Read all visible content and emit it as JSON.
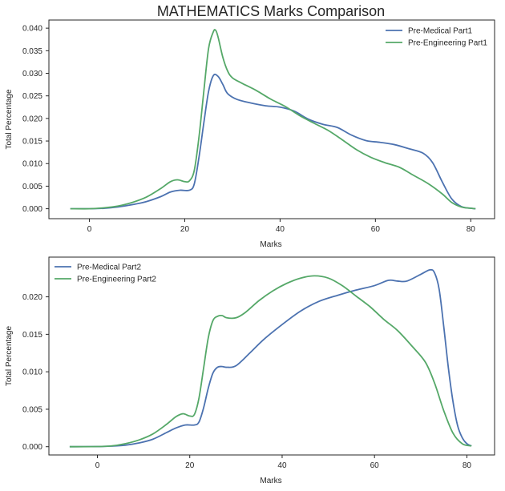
{
  "title": "MATHEMATICS Marks Comparison",
  "colors": {
    "blue": "#4C72B0",
    "green": "#55A868",
    "axis": "#262626"
  },
  "chart_data": [
    {
      "type": "line",
      "xlabel": "Marks",
      "ylabel": "Total Percentage",
      "xlim": [
        -8.5,
        85
      ],
      "ylim": [
        -0.0022,
        0.0418
      ],
      "xticks": [
        0,
        20,
        40,
        60,
        80
      ],
      "yticks": [
        0.0,
        0.005,
        0.01,
        0.015,
        0.02,
        0.025,
        0.03,
        0.035,
        0.04
      ],
      "ytick_labels": [
        "0.000",
        "0.005",
        "0.010",
        "0.015",
        "0.020",
        "0.025",
        "0.030",
        "0.035",
        "0.040"
      ],
      "legend_position": "top-right",
      "grid": false,
      "series": [
        {
          "name": "Pre-Medical Part1",
          "color": "#4C72B0",
          "points": [
            [
              -4,
              0
            ],
            [
              0,
              0
            ],
            [
              3,
              0.0001
            ],
            [
              6,
              0.0004
            ],
            [
              9,
              0.0009
            ],
            [
              12,
              0.0016
            ],
            [
              15,
              0.0027
            ],
            [
              17,
              0.0037
            ],
            [
              19,
              0.0041
            ],
            [
              21,
              0.0041
            ],
            [
              22,
              0.0055
            ],
            [
              23,
              0.0115
            ],
            [
              24,
              0.019
            ],
            [
              25,
              0.026
            ],
            [
              26,
              0.0295
            ],
            [
              27,
              0.0293
            ],
            [
              28,
              0.0275
            ],
            [
              29,
              0.0255
            ],
            [
              31,
              0.0242
            ],
            [
              34,
              0.0234
            ],
            [
              37,
              0.0228
            ],
            [
              40,
              0.0225
            ],
            [
              43,
              0.0216
            ],
            [
              46,
              0.0198
            ],
            [
              49,
              0.0187
            ],
            [
              52,
              0.018
            ],
            [
              55,
              0.0163
            ],
            [
              58,
              0.0151
            ],
            [
              61,
              0.0147
            ],
            [
              64,
              0.0142
            ],
            [
              67,
              0.0133
            ],
            [
              70,
              0.0123
            ],
            [
              72,
              0.0102
            ],
            [
              74,
              0.006
            ],
            [
              76,
              0.0022
            ],
            [
              78,
              0.0005
            ],
            [
              80,
              0.0001
            ],
            [
              81,
              0
            ]
          ]
        },
        {
          "name": "Pre-Engineering Part1",
          "color": "#55A868",
          "points": [
            [
              -4,
              0
            ],
            [
              0,
              0
            ],
            [
              3,
              0.0002
            ],
            [
              6,
              0.0006
            ],
            [
              9,
              0.0014
            ],
            [
              12,
              0.0026
            ],
            [
              15,
              0.0045
            ],
            [
              17,
              0.006
            ],
            [
              18.5,
              0.0064
            ],
            [
              20,
              0.006
            ],
            [
              21,
              0.0062
            ],
            [
              22,
              0.0085
            ],
            [
              23,
              0.016
            ],
            [
              24,
              0.026
            ],
            [
              25,
              0.0355
            ],
            [
              26,
              0.0392
            ],
            [
              26.5,
              0.0395
            ],
            [
              27,
              0.038
            ],
            [
              28,
              0.0335
            ],
            [
              29,
              0.0305
            ],
            [
              30,
              0.029
            ],
            [
              32,
              0.0278
            ],
            [
              35,
              0.0262
            ],
            [
              38,
              0.0243
            ],
            [
              41,
              0.0227
            ],
            [
              44,
              0.0207
            ],
            [
              47,
              0.019
            ],
            [
              50,
              0.0174
            ],
            [
              53,
              0.0153
            ],
            [
              56,
              0.0131
            ],
            [
              59,
              0.0114
            ],
            [
              62,
              0.0102
            ],
            [
              65,
              0.0092
            ],
            [
              68,
              0.0074
            ],
            [
              71,
              0.0056
            ],
            [
              74,
              0.0033
            ],
            [
              76,
              0.0014
            ],
            [
              78,
              0.0004
            ],
            [
              80,
              0.0001
            ],
            [
              81,
              0
            ]
          ]
        }
      ]
    },
    {
      "type": "line",
      "xlabel": "Marks",
      "ylabel": "Total Percentage",
      "xlim": [
        -10.5,
        86
      ],
      "ylim": [
        -0.0011,
        0.0253
      ],
      "xticks": [
        0,
        20,
        40,
        60,
        80
      ],
      "yticks": [
        0.0,
        0.005,
        0.01,
        0.015,
        0.02
      ],
      "ytick_labels": [
        "0.000",
        "0.005",
        "0.010",
        "0.015",
        "0.020"
      ],
      "legend_position": "top-left",
      "grid": false,
      "series": [
        {
          "name": "Pre-Medical Part2",
          "color": "#4C72B0",
          "points": [
            [
              -6,
              0
            ],
            [
              0,
              2e-05
            ],
            [
              3,
              8e-05
            ],
            [
              6,
              0.0002
            ],
            [
              9,
              0.0005
            ],
            [
              12,
              0.001
            ],
            [
              15,
              0.0019
            ],
            [
              17,
              0.0025
            ],
            [
              19,
              0.0029
            ],
            [
              21,
              0.0029
            ],
            [
              22,
              0.0033
            ],
            [
              23,
              0.0052
            ],
            [
              24,
              0.0078
            ],
            [
              25,
              0.0098
            ],
            [
              26,
              0.0106
            ],
            [
              27,
              0.0107
            ],
            [
              28,
              0.0106
            ],
            [
              30,
              0.0108
            ],
            [
              33,
              0.0125
            ],
            [
              36,
              0.0143
            ],
            [
              40,
              0.0163
            ],
            [
              44,
              0.0181
            ],
            [
              48,
              0.0194
            ],
            [
              52,
              0.0202
            ],
            [
              56,
              0.0209
            ],
            [
              60,
              0.0215
            ],
            [
              63,
              0.0222
            ],
            [
              65,
              0.0221
            ],
            [
              67,
              0.0221
            ],
            [
              70,
              0.023
            ],
            [
              72,
              0.0236
            ],
            [
              73,
              0.0232
            ],
            [
              74,
              0.021
            ],
            [
              75,
              0.016
            ],
            [
              76,
              0.0105
            ],
            [
              77,
              0.006
            ],
            [
              78,
              0.0028
            ],
            [
              79,
              0.0012
            ],
            [
              80,
              0.0004
            ],
            [
              81,
              0.0001
            ]
          ]
        },
        {
          "name": "Pre-Engineering Part2",
          "color": "#55A868",
          "points": [
            [
              -6,
              0
            ],
            [
              0,
              2e-05
            ],
            [
              3,
              0.0001
            ],
            [
              6,
              0.0004
            ],
            [
              9,
              0.0009
            ],
            [
              12,
              0.0017
            ],
            [
              15,
              0.003
            ],
            [
              17,
              0.004
            ],
            [
              18.5,
              0.0044
            ],
            [
              20,
              0.0041
            ],
            [
              21,
              0.0043
            ],
            [
              22,
              0.0065
            ],
            [
              23,
              0.0105
            ],
            [
              24,
              0.0145
            ],
            [
              25,
              0.0168
            ],
            [
              26,
              0.0174
            ],
            [
              27,
              0.0175
            ],
            [
              28,
              0.0172
            ],
            [
              30,
              0.0172
            ],
            [
              32,
              0.0179
            ],
            [
              35,
              0.0195
            ],
            [
              38,
              0.0208
            ],
            [
              41,
              0.0218
            ],
            [
              44,
              0.0225
            ],
            [
              47,
              0.0228
            ],
            [
              50,
              0.0225
            ],
            [
              53,
              0.0215
            ],
            [
              56,
              0.0201
            ],
            [
              59,
              0.0187
            ],
            [
              62,
              0.017
            ],
            [
              65,
              0.0155
            ],
            [
              68,
              0.0135
            ],
            [
              71,
              0.0113
            ],
            [
              73,
              0.0085
            ],
            [
              75,
              0.0048
            ],
            [
              77,
              0.0018
            ],
            [
              79,
              0.0004
            ],
            [
              81,
              0.0001
            ]
          ]
        }
      ]
    }
  ]
}
